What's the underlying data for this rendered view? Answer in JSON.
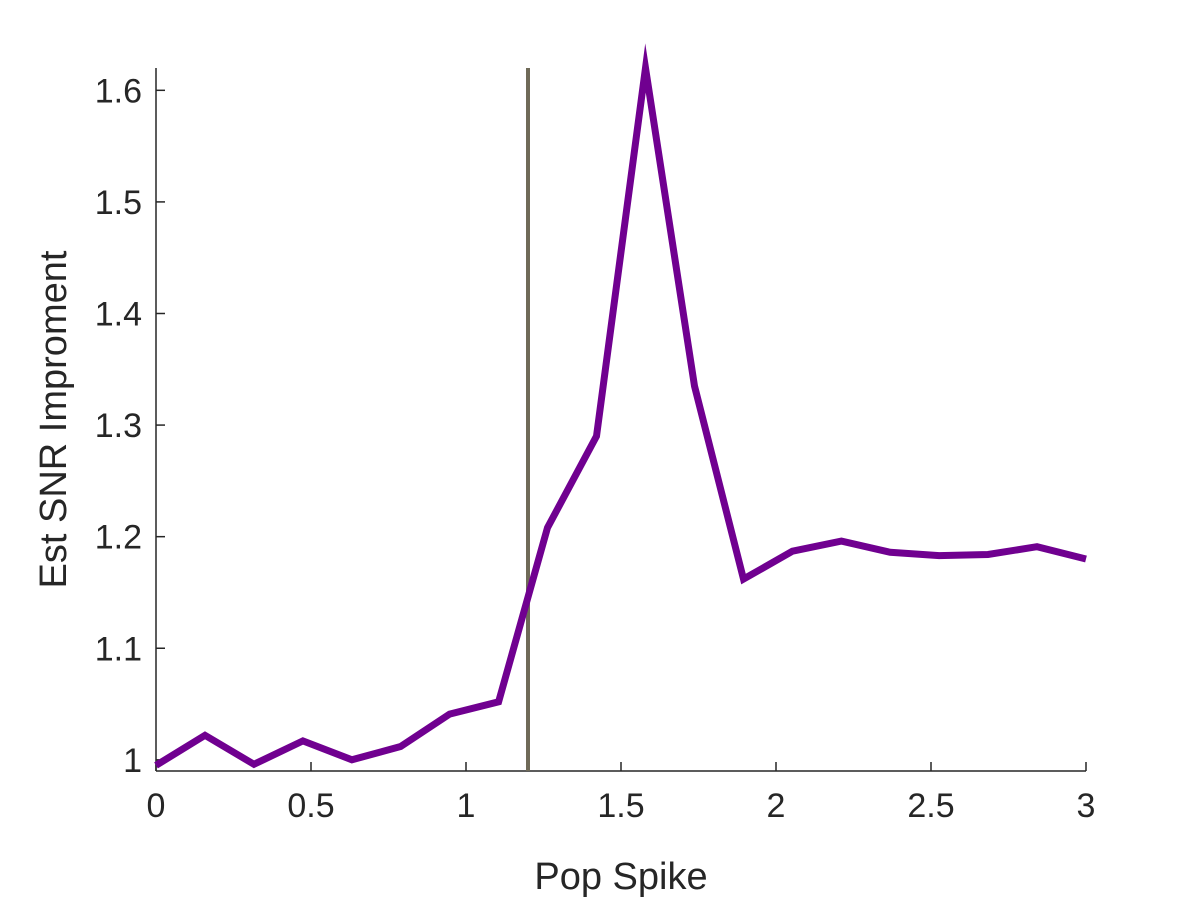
{
  "chart_data": {
    "type": "line",
    "xlabel": "Pop Spike",
    "ylabel": "Est SNR Improment",
    "xlim": [
      0,
      3
    ],
    "ylim": [
      0.99,
      1.62
    ],
    "x_ticks": [
      0,
      0.5,
      1,
      1.5,
      2,
      2.5,
      3
    ],
    "x_tick_labels": [
      "0",
      "0.5",
      "1",
      "1.5",
      "2",
      "2.5",
      "3"
    ],
    "y_ticks": [
      1,
      1.1,
      1.2,
      1.3,
      1.4,
      1.5,
      1.6
    ],
    "y_tick_labels": [
      "1",
      "1.1",
      "1.2",
      "1.3",
      "1.4",
      "1.5",
      "1.6"
    ],
    "grid": false,
    "series": [
      {
        "color": "#700090",
        "x": [
          0,
          0.158,
          0.316,
          0.474,
          0.632,
          0.789,
          0.947,
          1.105,
          1.263,
          1.421,
          1.579,
          1.737,
          1.895,
          2.053,
          2.211,
          2.368,
          2.526,
          2.684,
          2.842,
          3.0
        ],
        "y": [
          0.995,
          1.022,
          0.996,
          1.017,
          1.0,
          1.012,
          1.041,
          1.052,
          1.208,
          1.29,
          1.62,
          1.335,
          1.162,
          1.187,
          1.196,
          1.186,
          1.183,
          1.184,
          1.191,
          1.18
        ]
      }
    ],
    "annotations": [
      {
        "type": "vline",
        "x": 1.2,
        "color": "#6f6a58"
      }
    ]
  }
}
